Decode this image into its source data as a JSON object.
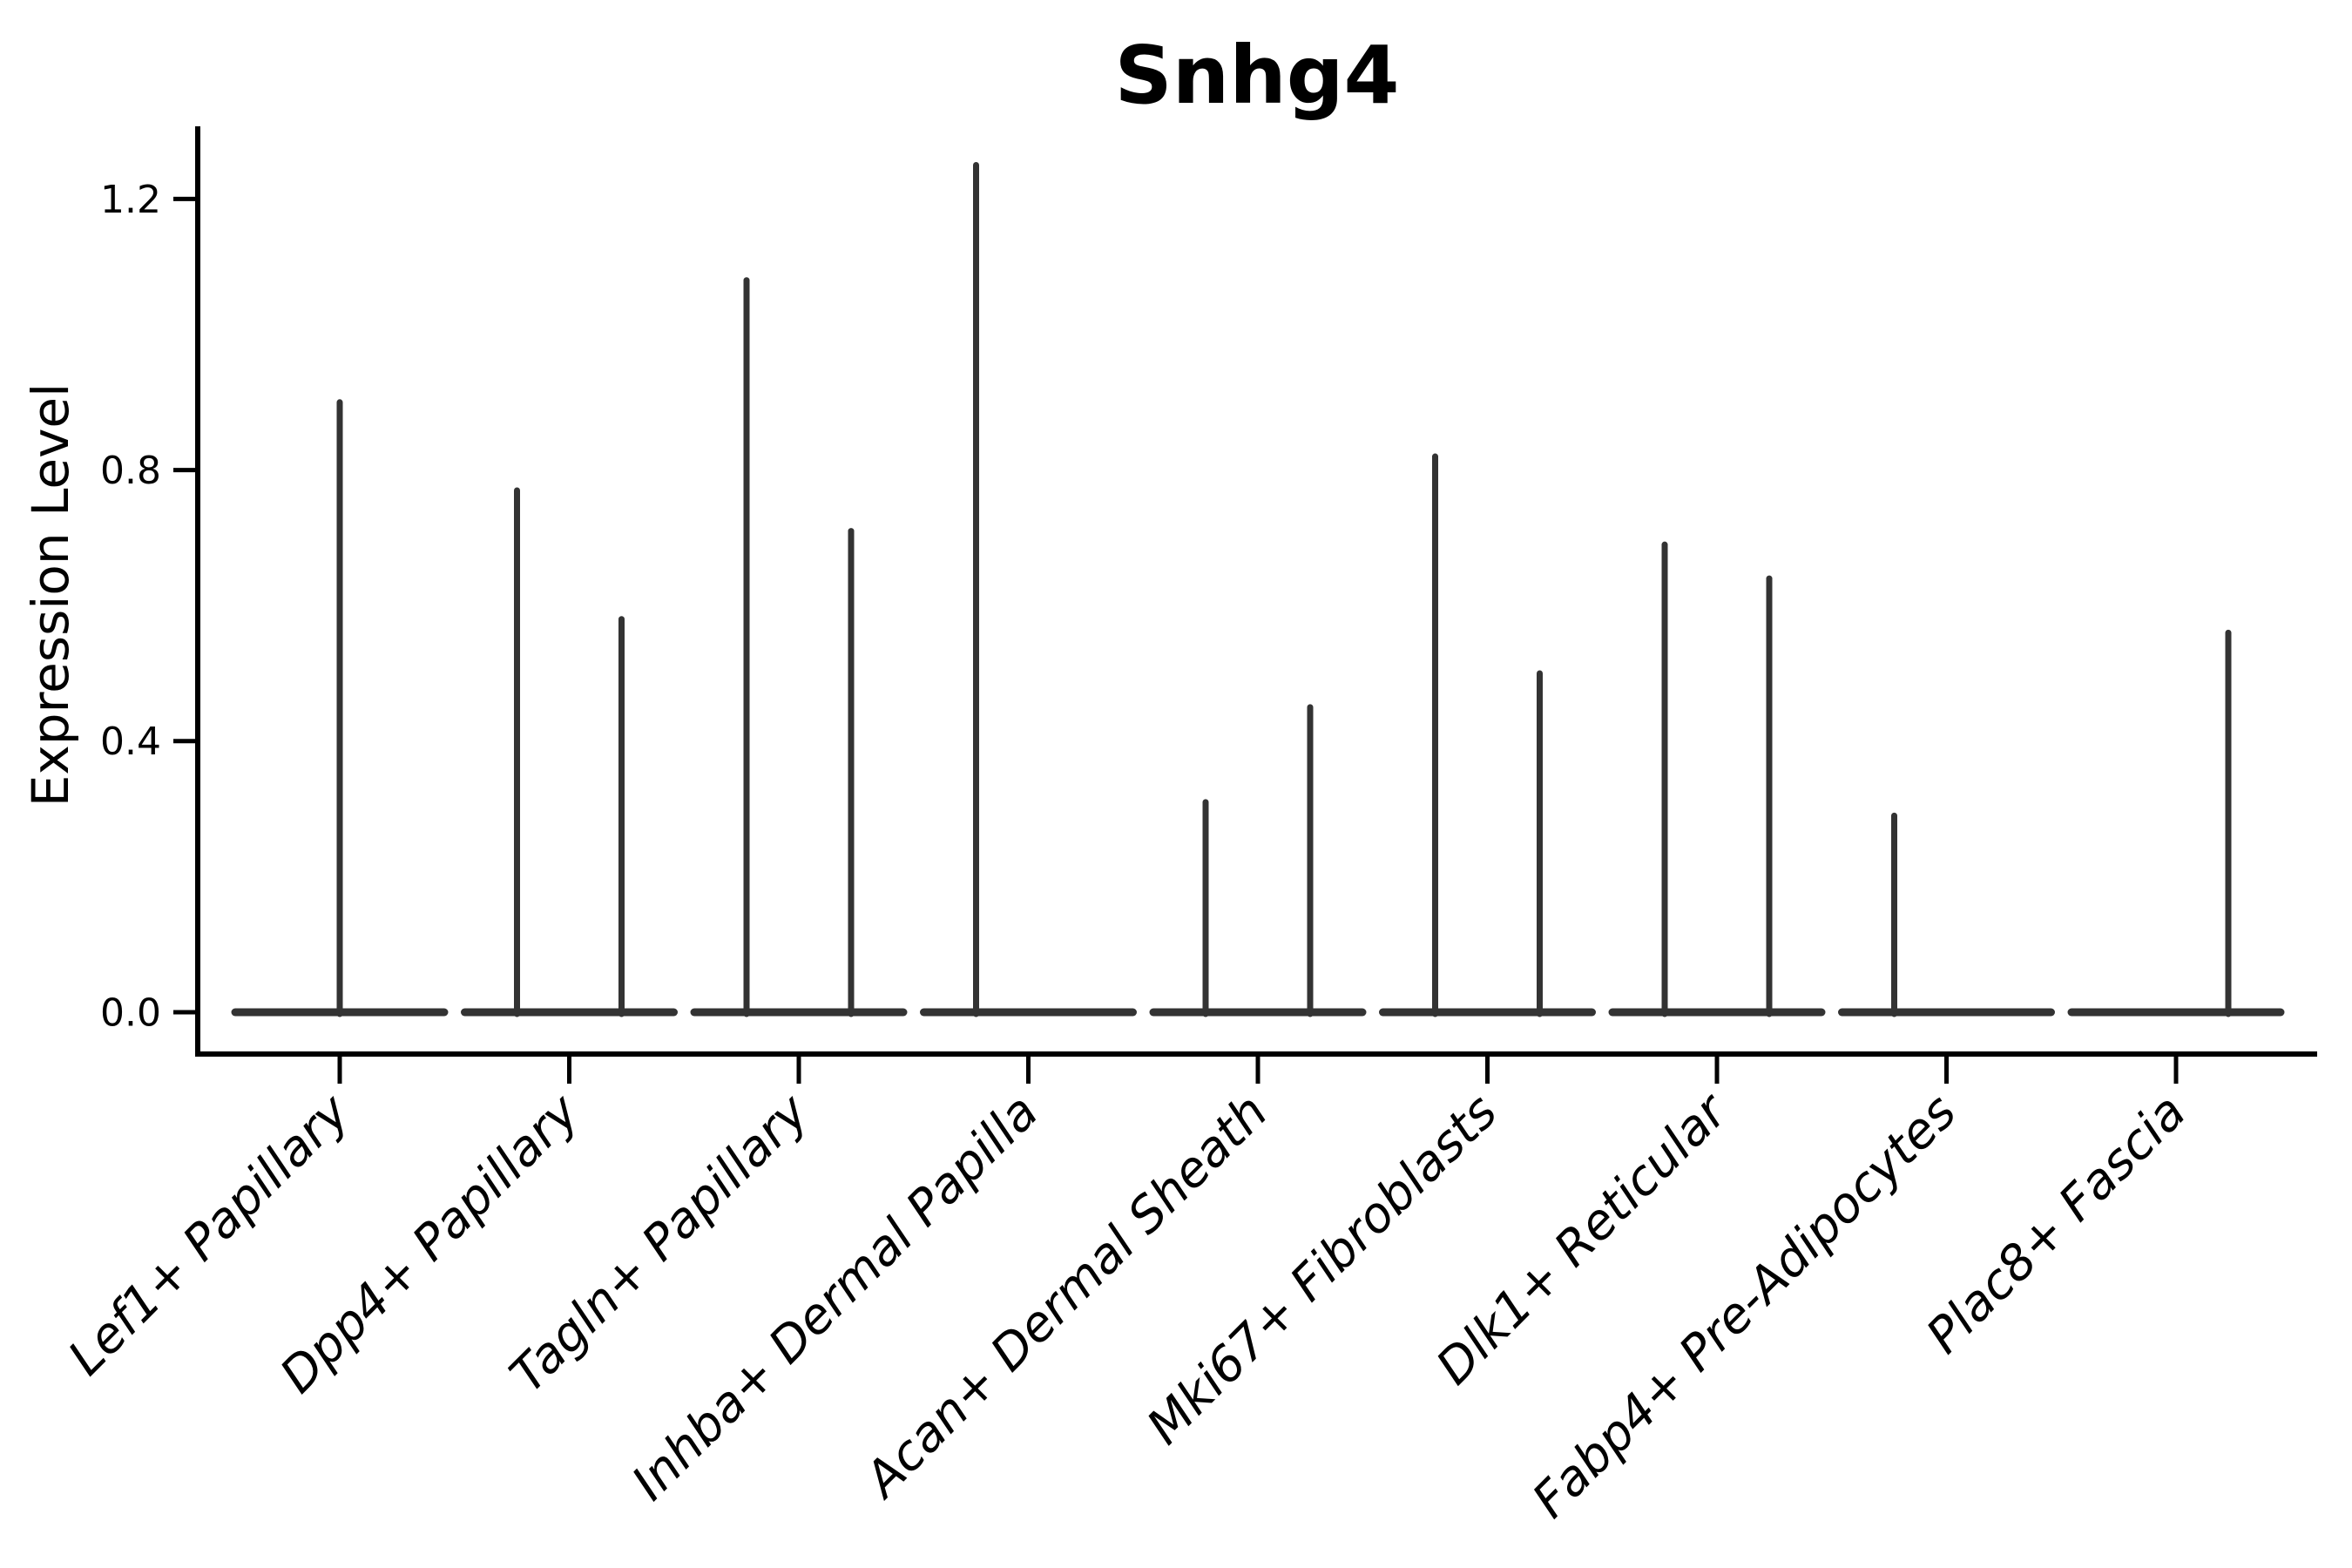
{
  "chart_data": {
    "type": "violin",
    "title": "Snhg4",
    "ylabel": "Expression Level",
    "xlabel": "",
    "ylim": [
      -0.06,
      1.31
    ],
    "yticks": [
      0,
      0.4,
      0.8,
      1.2
    ],
    "ytick_labels": [
      "0.0",
      "0.4",
      "0.8",
      "1.2"
    ],
    "grid": false,
    "legend_position": "none",
    "line_color": "#333333",
    "axis_color": "#000000",
    "categories": [
      "Lef1+ Papillary",
      "Dpp4+ Papillary",
      "Tagln+ Papillary",
      "Inhba+ Dermal Papilla",
      "Acan+ Dermal Sheath",
      "Mki67+ Fibroblasts",
      "Dlk1+ Reticular",
      "Fabp4+ Pre-Adipocytes",
      "Plac8+ Fascia"
    ],
    "violins": [
      {
        "category": "Lef1+ Papillary",
        "spikes": [
          {
            "pos": "center",
            "max": 0.9
          }
        ]
      },
      {
        "category": "Dpp4+ Papillary",
        "spikes": [
          {
            "pos": "left",
            "max": 0.77
          },
          {
            "pos": "right",
            "max": 0.58
          }
        ]
      },
      {
        "category": "Tagln+ Papillary",
        "spikes": [
          {
            "pos": "left",
            "max": 1.08
          },
          {
            "pos": "right",
            "max": 0.71
          }
        ]
      },
      {
        "category": "Inhba+ Dermal Papilla",
        "spikes": [
          {
            "pos": "left",
            "max": 1.25
          }
        ]
      },
      {
        "category": "Acan+ Dermal Sheath",
        "spikes": [
          {
            "pos": "left",
            "max": 0.31
          },
          {
            "pos": "right",
            "max": 0.45
          }
        ]
      },
      {
        "category": "Mki67+ Fibroblasts",
        "spikes": [
          {
            "pos": "left",
            "max": 0.82
          },
          {
            "pos": "right",
            "max": 0.5
          }
        ]
      },
      {
        "category": "Dlk1+ Reticular",
        "spikes": [
          {
            "pos": "left",
            "max": 0.69
          },
          {
            "pos": "right",
            "max": 0.64
          }
        ]
      },
      {
        "category": "Fabp4+ Pre-Adipocytes",
        "spikes": [
          {
            "pos": "left",
            "max": 0.29
          }
        ]
      },
      {
        "category": "Plac8+ Fascia",
        "spikes": [
          {
            "pos": "right",
            "max": 0.56
          }
        ]
      }
    ]
  }
}
